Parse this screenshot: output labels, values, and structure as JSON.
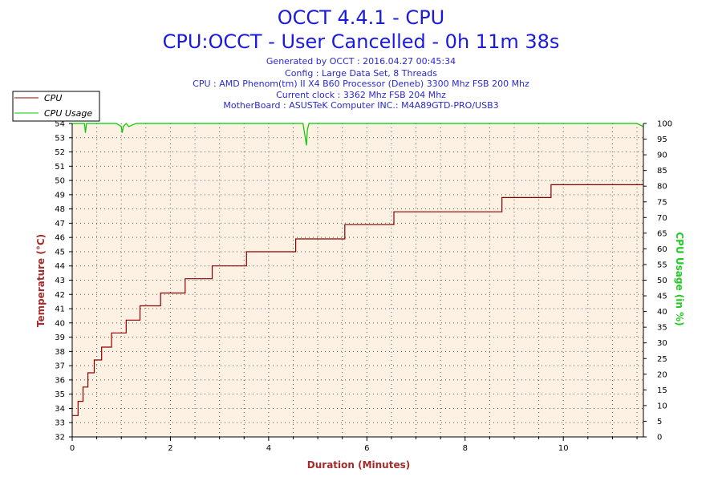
{
  "title": "OCCT 4.4.1 - CPU",
  "subtitle": "CPU:OCCT - User Cancelled - 0h 11m 38s",
  "info_lines": [
    "Generated by OCCT : 2016.04.27 00:45:34",
    "Config : Large Data Set, 8 Threads",
    "CPU : AMD Phenom(tm) II X4 B60 Processor (Deneb) 3300 Mhz FSB 200 Mhz",
    "Current clock : 3362 Mhz FSB 204 Mhz",
    "MotherBoard : ASUSTeK Computer INC.: M4A89GTD-PRO/USB3"
  ],
  "colors": {
    "temperature": "#8b0000",
    "usage": "#00cc00",
    "plot_bg": "#fcf1e2",
    "title": "#1a1adf",
    "info": "#2a2ad0",
    "left_axis_label": "#a52a2a",
    "right_axis_label": "#22cc22"
  },
  "chart_data": {
    "type": "line",
    "title": "OCCT 4.4.1 - CPU",
    "xlabel": "Duration (Minutes)",
    "ylabel": "Temperature (°C)",
    "y2label": "CPU Usage (in %)",
    "xlim": [
      0,
      11.63
    ],
    "ylim": [
      32,
      54
    ],
    "y2lim": [
      0,
      100
    ],
    "x_ticks": [
      0,
      2,
      4,
      6,
      8,
      10
    ],
    "y_ticks": [
      32,
      33,
      34,
      35,
      36,
      37,
      38,
      39,
      40,
      41,
      42,
      43,
      44,
      45,
      46,
      47,
      48,
      49,
      50,
      51,
      52,
      53,
      54
    ],
    "y2_ticks": [
      0,
      5,
      10,
      15,
      20,
      25,
      30,
      35,
      40,
      45,
      50,
      55,
      60,
      65,
      70,
      75,
      80,
      85,
      90,
      95,
      100
    ],
    "grid": true,
    "legend_position": "top-left",
    "series": [
      {
        "name": "CPU",
        "axis": "left",
        "x": [
          0,
          0.12,
          0.12,
          0.22,
          0.22,
          0.32,
          0.32,
          0.45,
          0.45,
          0.6,
          0.6,
          0.8,
          0.8,
          1.1,
          1.1,
          1.38,
          1.38,
          1.8,
          1.8,
          2.3,
          2.3,
          2.85,
          2.85,
          3.55,
          3.55,
          4.55,
          4.55,
          5.55,
          5.55,
          6.55,
          6.55,
          8.75,
          8.75,
          9.75,
          9.75,
          11.63
        ],
        "values": [
          33.5,
          33.5,
          34.5,
          34.5,
          35.5,
          35.5,
          36.5,
          36.5,
          37.4,
          37.4,
          38.3,
          38.3,
          39.3,
          39.3,
          40.2,
          40.2,
          41.2,
          41.2,
          42.1,
          42.1,
          43.1,
          43.1,
          44.0,
          44.0,
          45.0,
          45.0,
          45.9,
          45.9,
          46.9,
          46.9,
          47.8,
          47.8,
          48.8,
          48.8,
          49.7,
          49.7
        ]
      },
      {
        "name": "CPU Usage",
        "axis": "right",
        "x": [
          0,
          0.25,
          0.27,
          0.29,
          0.9,
          1.0,
          1.02,
          1.04,
          1.1,
          1.15,
          1.3,
          1.5,
          4.7,
          4.75,
          4.77,
          4.79,
          4.82,
          11.5,
          11.63
        ],
        "values": [
          100,
          100,
          97,
          100,
          100,
          99,
          97,
          99,
          100,
          99,
          100,
          100,
          100,
          95,
          93,
          98,
          100,
          100,
          99
        ]
      }
    ]
  }
}
